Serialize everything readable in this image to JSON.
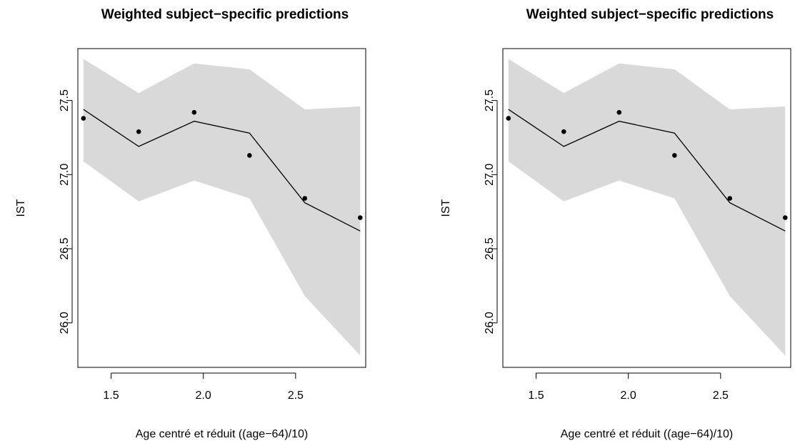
{
  "chart_data": [
    {
      "type": "line",
      "title": "Weighted subject−specific predictions",
      "xlabel": "Age centré et réduit ((age−64)/10)",
      "ylabel": "IST",
      "xlim": [
        1.32,
        2.88
      ],
      "ylim": [
        25.7,
        27.85
      ],
      "x_ticks": [
        1.5,
        2.0,
        2.5
      ],
      "x_tick_labels": [
        "1.5",
        "2.0",
        "2.5"
      ],
      "y_ticks": [
        26.0,
        26.5,
        27.0,
        27.5
      ],
      "y_tick_labels": [
        "26.0",
        "26.5",
        "27.0",
        "27.5"
      ],
      "grid": false,
      "x": [
        1.35,
        1.65,
        1.95,
        2.25,
        2.55,
        2.85
      ],
      "band_upper": [
        27.78,
        27.55,
        27.75,
        27.71,
        27.44,
        27.46
      ],
      "band_lower": [
        27.09,
        26.82,
        26.96,
        26.84,
        26.18,
        25.78
      ],
      "line_values": [
        27.44,
        27.19,
        27.36,
        27.28,
        26.81,
        26.62
      ],
      "point_values": [
        27.38,
        27.29,
        27.42,
        27.13,
        26.84,
        26.71
      ],
      "colors": {
        "band": "#d9d9d9",
        "line": "#000000",
        "points": "#000000",
        "frame": "#000000"
      }
    },
    {
      "type": "line",
      "title": "Weighted subject−specific predictions",
      "xlabel": "Age centré et réduit ((age−64)/10)",
      "ylabel": "IST",
      "xlim": [
        1.32,
        2.88
      ],
      "ylim": [
        25.7,
        27.85
      ],
      "x_ticks": [
        1.5,
        2.0,
        2.5
      ],
      "x_tick_labels": [
        "1.5",
        "2.0",
        "2.5"
      ],
      "y_ticks": [
        26.0,
        26.5,
        27.0,
        27.5
      ],
      "y_tick_labels": [
        "26.0",
        "26.5",
        "27.0",
        "27.5"
      ],
      "grid": false,
      "x": [
        1.35,
        1.65,
        1.95,
        2.25,
        2.55,
        2.85
      ],
      "band_upper": [
        27.78,
        27.55,
        27.75,
        27.71,
        27.44,
        27.46
      ],
      "band_lower": [
        27.09,
        26.82,
        26.96,
        26.84,
        26.18,
        25.78
      ],
      "line_values": [
        27.44,
        27.19,
        27.36,
        27.28,
        26.81,
        26.62
      ],
      "point_values": [
        27.38,
        27.29,
        27.42,
        27.13,
        26.84,
        26.71
      ],
      "colors": {
        "band": "#d9d9d9",
        "line": "#000000",
        "points": "#000000",
        "frame": "#000000"
      }
    }
  ]
}
